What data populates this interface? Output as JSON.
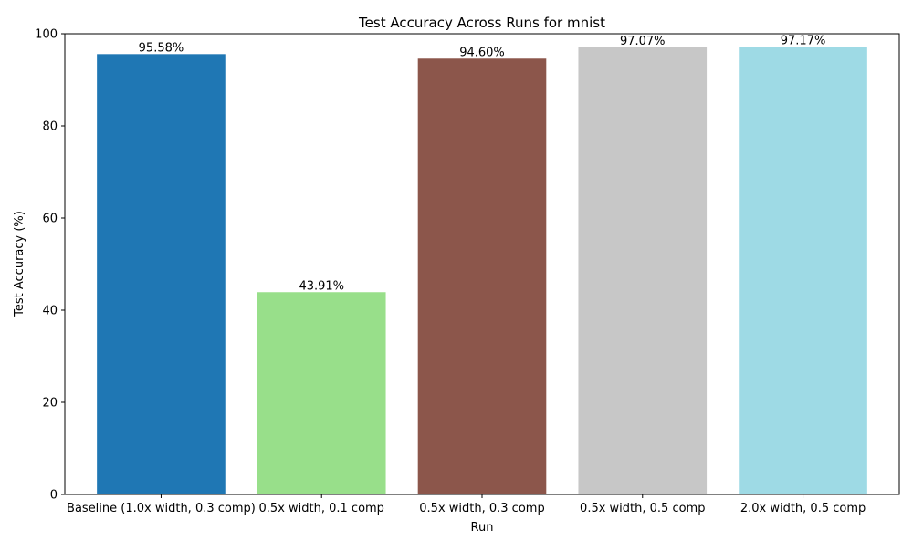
{
  "chart_data": {
    "type": "bar",
    "title": "Test Accuracy Across Runs for mnist",
    "xlabel": "Run",
    "ylabel": "Test Accuracy (%)",
    "ylim": [
      0,
      100
    ],
    "yticks": [
      0,
      20,
      40,
      60,
      80,
      100
    ],
    "grid": false,
    "categories": [
      "Baseline (1.0x width, 0.3 comp)",
      "0.5x width, 0.1 comp",
      "0.5x width, 0.3 comp",
      "0.5x width, 0.5 comp",
      "2.0x width, 0.5 comp"
    ],
    "values": [
      95.58,
      43.91,
      94.6,
      97.07,
      97.17
    ],
    "value_labels": [
      "95.58%",
      "43.91%",
      "94.60%",
      "97.07%",
      "97.17%"
    ],
    "colors": [
      "#1f77b4",
      "#98df8a",
      "#8c564b",
      "#c7c7c7",
      "#9edae5"
    ]
  }
}
